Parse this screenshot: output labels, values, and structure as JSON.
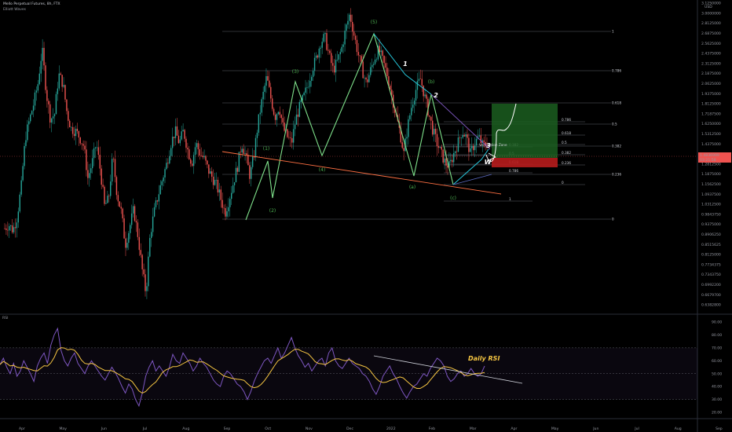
{
  "header": {
    "symbol_line": "Mello Perpetual Futures, 8h, FTX",
    "indicator_line": "Elliott Waves"
  },
  "colors": {
    "background": "#000000",
    "up_candle": "#26a69a",
    "down_candle": "#ef5350",
    "wave_line": "#7ee08a",
    "wave_label": "#4caf50",
    "impulse_line": "#26c6da",
    "fib_line": "#5d606b",
    "support_line": "#ff7043",
    "resistance_line": "#7e57c2",
    "rsi_line": "#7e57c2",
    "rsi_ma": "#f5c542",
    "target_zone": "#1b5e20",
    "stop_zone": "#b71c1c",
    "price_badge": "#ef5350"
  },
  "price_axis": {
    "unit_label": "USD",
    "labels": [
      "3.1250000",
      "3.0000000",
      "2.8125000",
      "2.6875000",
      "2.5625000",
      "2.4375000",
      "2.3125000",
      "2.1875000",
      "2.0625000",
      "1.9375000",
      "1.8125000",
      "1.7187500",
      "1.6250000",
      "1.5312500",
      "1.4375000",
      "1.3437500",
      "1.2812500",
      "1.1875000",
      "1.1562500",
      "1.0937500",
      "1.0312500",
      "0.9843750",
      "0.9375000",
      "0.8906250",
      "0.8515625",
      "0.8125000",
      "0.7734375",
      "0.7343750",
      "0.6992200",
      "0.6679700",
      "0.6382800"
    ],
    "current_price": "1.4836999",
    "current_time": "03:21:58"
  },
  "rsi_axis": {
    "panel_label": "RSI",
    "labels": [
      "90.00",
      "80.00",
      "70.00",
      "60.00",
      "50.00",
      "40.00",
      "30.00",
      "20.00"
    ]
  },
  "time_axis": {
    "labels": [
      "Apr",
      "May",
      "Jun",
      "Jul",
      "Aug",
      "Sep",
      "Oct",
      "Nov",
      "Dec",
      "2022",
      "Feb",
      "Mar",
      "Apr",
      "May",
      "Jun",
      "Jul",
      "Aug",
      "Sep"
    ]
  },
  "chart_data": {
    "type": "candlestick",
    "price_scale": "log",
    "ylim": [
      0.63828,
      3.125
    ],
    "price_series": [
      0.96,
      0.98,
      0.95,
      1.02,
      1.2,
      1.55,
      1.7,
      1.85,
      2.05,
      2.45,
      1.95,
      1.7,
      1.75,
      2.15,
      2.05,
      1.75,
      1.62,
      1.6,
      1.55,
      1.48,
      1.25,
      1.35,
      1.5,
      1.3,
      1.08,
      1.12,
      1.4,
      1.15,
      1.05,
      0.88,
      0.96,
      1.06,
      0.93,
      0.78,
      0.68,
      0.93,
      1.05,
      1.15,
      1.25,
      1.35,
      1.5,
      1.6,
      1.5,
      1.6,
      1.45,
      1.35,
      1.5,
      1.42,
      1.38,
      1.3,
      1.25,
      1.2,
      1.12,
      1.04,
      1.12,
      1.22,
      1.33,
      1.5,
      1.4,
      1.26,
      1.42,
      1.68,
      1.9,
      2.12,
      1.9,
      1.72,
      1.82,
      1.62,
      1.55,
      1.5,
      1.7,
      1.82,
      1.92,
      2.05,
      2.22,
      2.35,
      2.55,
      2.62,
      2.38,
      2.2,
      2.3,
      2.45,
      2.72,
      2.95,
      2.65,
      2.4,
      2.2,
      2.05,
      2.2,
      2.35,
      2.45,
      2.3,
      2.15,
      1.95,
      1.75,
      1.6,
      1.42,
      1.65,
      1.85,
      2.0,
      2.1,
      1.92,
      1.75,
      1.6,
      1.5,
      1.42,
      1.35,
      1.33,
      1.42,
      1.5,
      1.6,
      1.55,
      1.42,
      1.5,
      1.55,
      1.48,
      1.5
    ],
    "elliott_waves": {
      "labels": [
        "(1)",
        "(2)",
        "(3)",
        "(4)",
        "(5)",
        "(a)",
        "(b)",
        "(c)",
        "1",
        "2",
        "3",
        "W"
      ]
    },
    "fib_levels_primary": [
      "1",
      "0.786",
      "0.618",
      "0.5",
      "0.382",
      "0.236",
      "0"
    ],
    "fib_levels_secondary": [
      "0.786",
      "0.618",
      "0.5",
      "0.382",
      "0.236",
      "0",
      "0.382",
      "0.5",
      "0.618",
      "0.786",
      "1"
    ],
    "zone_label": "Verification Zone",
    "rsi": {
      "ylim": [
        20,
        90
      ],
      "upper_band": 70,
      "lower_band": 30,
      "annotation": "Daily RSI",
      "values": [
        57,
        62,
        55,
        50,
        58,
        48,
        52,
        60,
        55,
        50,
        44,
        56,
        62,
        66,
        58,
        72,
        80,
        85,
        68,
        60,
        56,
        62,
        66,
        58,
        54,
        50,
        56,
        60,
        56,
        52,
        48,
        45,
        50,
        55,
        51,
        46,
        40,
        35,
        42,
        38,
        30,
        25,
        35,
        48,
        55,
        60,
        52,
        56,
        52,
        48,
        55,
        65,
        60,
        58,
        66,
        62,
        58,
        52,
        56,
        62,
        58,
        55,
        50,
        45,
        42,
        40,
        48,
        52,
        50,
        46,
        42,
        40,
        36,
        30,
        36,
        44,
        50,
        55,
        60,
        62,
        58,
        64,
        70,
        62,
        66,
        72,
        78,
        70,
        64,
        60,
        55,
        58,
        52,
        56,
        60,
        62,
        56,
        66,
        70,
        60,
        56,
        54,
        58,
        62,
        58,
        56,
        54,
        50,
        48,
        44,
        38,
        34,
        40,
        48,
        52,
        56,
        50,
        46,
        40,
        35,
        31,
        36,
        40,
        42,
        46,
        50,
        48,
        54,
        58,
        62,
        60,
        56,
        48,
        44,
        46,
        50,
        52,
        48,
        50,
        54,
        50,
        48,
        50,
        56
      ]
    }
  }
}
